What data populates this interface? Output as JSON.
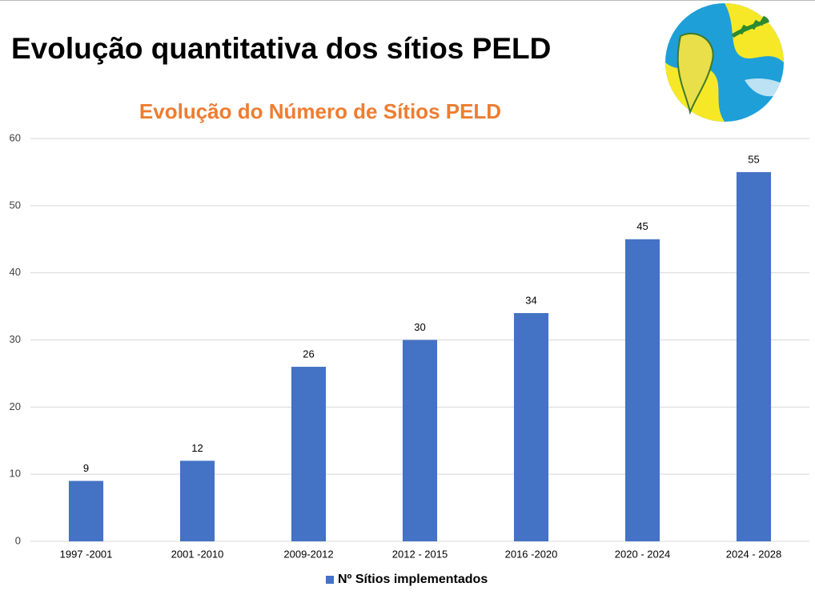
{
  "slide_title": "Evolução quantitativa dos sítios PELD",
  "chart_data": {
    "type": "bar",
    "title": "Evolução do Número de Sítios PELD",
    "categories": [
      "1997 -2001",
      "2001 -2010",
      "2009-2012",
      "2012 - 2015",
      "2016 -2020",
      "2020 - 2024",
      "2024 - 2028"
    ],
    "series": [
      {
        "name": "Nº Sítios implementados",
        "color": "#4472c4",
        "values": [
          9,
          12,
          26,
          30,
          34,
          45,
          55
        ]
      }
    ],
    "ylim": [
      0,
      60
    ],
    "yticks": [
      0,
      10,
      20,
      30,
      40,
      50,
      60
    ],
    "grid": true,
    "legend": "bottom"
  }
}
